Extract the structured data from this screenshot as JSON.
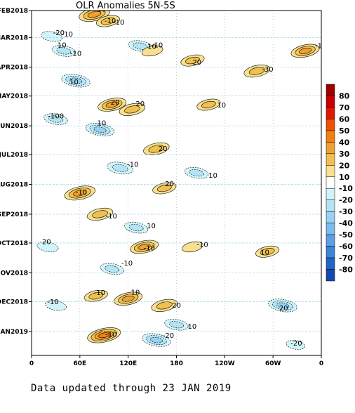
{
  "chart_data": {
    "type": "heatmap",
    "title": "OLR Anomalies 5N-5S",
    "footer": "Data updated through 23 JAN 2019",
    "xlabel": "",
    "ylabel": "",
    "x_ticks": [
      "0",
      "60E",
      "120E",
      "180",
      "120W",
      "60W",
      "0"
    ],
    "y_ticks": [
      "FEB2018",
      "MAR2018",
      "APR2018",
      "MAY2018",
      "JUN2018",
      "JUL2018",
      "AUG2018",
      "SEP2018",
      "OCT2018",
      "NOV2018",
      "DEC2018",
      "JAN2019"
    ],
    "x_range_longitude_east": [
      0,
      360
    ],
    "y_range": [
      "FEB2018",
      "JAN2019"
    ],
    "colorbar": {
      "levels": [
        "80",
        "70",
        "60",
        "50",
        "40",
        "30",
        "20",
        "10",
        "-10",
        "-20",
        "-30",
        "-40",
        "-50",
        "-60",
        "-70",
        "-80"
      ],
      "colors": [
        "#a00000",
        "#c80000",
        "#e01800",
        "#f05000",
        "#f08010",
        "#f0a030",
        "#f0c050",
        "#f8e090",
        "#ffffff",
        "#d0f4fa",
        "#b4e4f4",
        "#9ad0f0",
        "#7cbcec",
        "#5ca0e4",
        "#3c84d8",
        "#2064c8",
        "#1448b0"
      ]
    },
    "contour_labels": [
      "20",
      "-10",
      "-20",
      "-10",
      "-10",
      "10",
      "20",
      "-30",
      "-10",
      "10",
      "20",
      "20",
      "10",
      "-100",
      "10",
      "20",
      "-10",
      "10",
      "-10",
      "20",
      "-10",
      "10",
      "20",
      "-10",
      "-10",
      "-10",
      "10",
      "-10",
      "10",
      "20",
      "-10",
      "20",
      "-10",
      "-20",
      "10",
      "-20",
      "-10",
      "-10",
      "-10",
      "10"
    ],
    "features": [
      {
        "lon": 78,
        "date": "2018-02-05",
        "anomaly": 35,
        "kind": "peak"
      },
      {
        "lon": 95,
        "date": "2018-02-12",
        "anomaly": 20,
        "kind": "peak"
      },
      {
        "lon": 25,
        "date": "2018-02-28",
        "anomaly": -15,
        "kind": "peak"
      },
      {
        "lon": 40,
        "date": "2018-03-15",
        "anomaly": -20,
        "kind": "peak"
      },
      {
        "lon": 135,
        "date": "2018-03-10",
        "anomaly": -20,
        "kind": "peak"
      },
      {
        "lon": 150,
        "date": "2018-03-15",
        "anomaly": 15,
        "kind": "peak"
      },
      {
        "lon": 200,
        "date": "2018-03-25",
        "anomaly": 20,
        "kind": "peak"
      },
      {
        "lon": 280,
        "date": "2018-04-05",
        "anomaly": 25,
        "kind": "peak"
      },
      {
        "lon": 340,
        "date": "2018-03-15",
        "anomaly": 30,
        "kind": "peak"
      },
      {
        "lon": 55,
        "date": "2018-04-15",
        "anomaly": -30,
        "kind": "peak"
      },
      {
        "lon": 100,
        "date": "2018-05-10",
        "anomaly": 30,
        "kind": "peak"
      },
      {
        "lon": 125,
        "date": "2018-05-15",
        "anomaly": 25,
        "kind": "peak"
      },
      {
        "lon": 220,
        "date": "2018-05-10",
        "anomaly": 20,
        "kind": "peak"
      },
      {
        "lon": 30,
        "date": "2018-05-25",
        "anomaly": -20,
        "kind": "peak"
      },
      {
        "lon": 85,
        "date": "2018-06-05",
        "anomaly": -30,
        "kind": "peak"
      },
      {
        "lon": 155,
        "date": "2018-06-25",
        "anomaly": 25,
        "kind": "peak"
      },
      {
        "lon": 110,
        "date": "2018-07-15",
        "anomaly": -25,
        "kind": "peak"
      },
      {
        "lon": 205,
        "date": "2018-07-20",
        "anomaly": -20,
        "kind": "peak"
      },
      {
        "lon": 60,
        "date": "2018-08-10",
        "anomaly": 35,
        "kind": "peak"
      },
      {
        "lon": 165,
        "date": "2018-08-05",
        "anomaly": 20,
        "kind": "peak"
      },
      {
        "lon": 85,
        "date": "2018-09-01",
        "anomaly": 25,
        "kind": "peak"
      },
      {
        "lon": 130,
        "date": "2018-09-15",
        "anomaly": -20,
        "kind": "peak"
      },
      {
        "lon": 20,
        "date": "2018-10-05",
        "anomaly": -15,
        "kind": "peak"
      },
      {
        "lon": 140,
        "date": "2018-10-05",
        "anomaly": 30,
        "kind": "peak"
      },
      {
        "lon": 200,
        "date": "2018-10-05",
        "anomaly": 15,
        "kind": "peak"
      },
      {
        "lon": 100,
        "date": "2018-10-28",
        "anomaly": -20,
        "kind": "peak"
      },
      {
        "lon": 293,
        "date": "2018-10-10",
        "anomaly": 20,
        "kind": "peak"
      },
      {
        "lon": 80,
        "date": "2018-11-25",
        "anomaly": 20,
        "kind": "peak"
      },
      {
        "lon": 120,
        "date": "2018-11-28",
        "anomaly": 30,
        "kind": "peak"
      },
      {
        "lon": 165,
        "date": "2018-12-05",
        "anomaly": 25,
        "kind": "peak"
      },
      {
        "lon": 30,
        "date": "2018-12-05",
        "anomaly": -15,
        "kind": "peak"
      },
      {
        "lon": 312,
        "date": "2018-12-05",
        "anomaly": -30,
        "kind": "peak"
      },
      {
        "lon": 90,
        "date": "2019-01-05",
        "anomaly": 40,
        "kind": "peak"
      },
      {
        "lon": 155,
        "date": "2019-01-10",
        "anomaly": -30,
        "kind": "peak"
      },
      {
        "lon": 180,
        "date": "2018-12-25",
        "anomaly": -20,
        "kind": "peak"
      },
      {
        "lon": 328,
        "date": "2019-01-15",
        "anomaly": -10,
        "kind": "peak"
      }
    ],
    "grid": true,
    "legend_placement": "right"
  }
}
